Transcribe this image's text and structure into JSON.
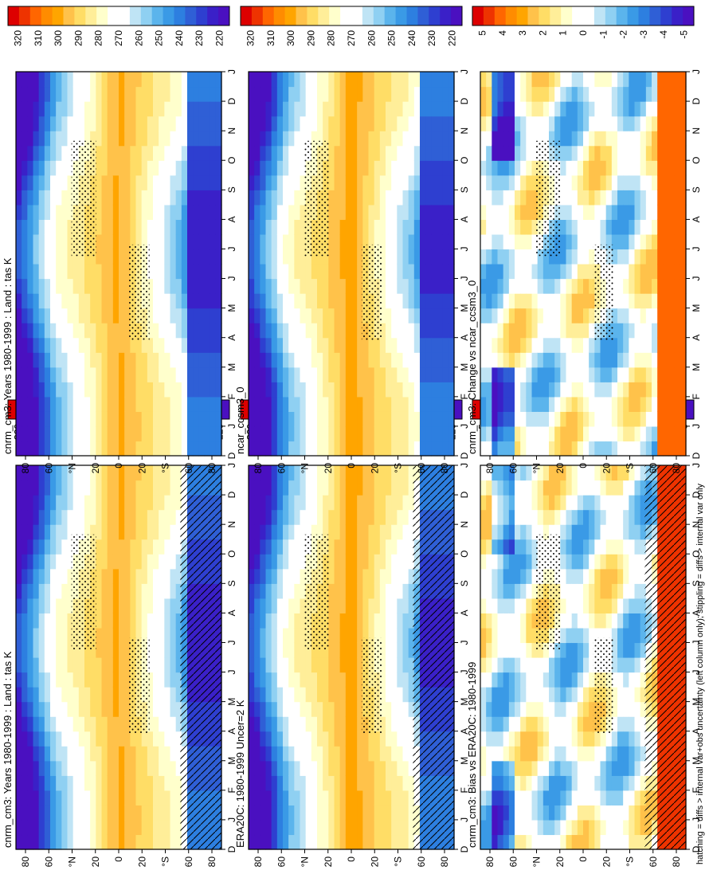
{
  "figure": {
    "footnote": "hatching = diffs > internal var+obs uncertainty (left column only); stippling = diffs > internal var only"
  },
  "chart_data": [
    {
      "id": "left-top",
      "type": "heatmap",
      "title": "cnrm_cm3: Years 1980-1999 : Land : tas K",
      "x": "month",
      "y": "latitude",
      "xticks": [
        "D",
        "J",
        "F",
        "M",
        "A",
        "M",
        "J",
        "J",
        "A",
        "S",
        "O",
        "N",
        "D",
        "J"
      ],
      "yticks": [
        "80",
        "60",
        "°N",
        "20",
        "0",
        "20",
        "°S",
        "60",
        "80"
      ],
      "ylim": [
        -90,
        90
      ],
      "colorbar": {
        "labels": [
          "320",
          "310",
          "300",
          "290",
          "280",
          "270",
          "260",
          "250",
          "240",
          "230",
          "220"
        ],
        "colors": [
          "#dd0000",
          "#ee3300",
          "#ff6600",
          "#ff8c00",
          "#ffa500",
          "#ffc24a",
          "#ffdd66",
          "#ffee99",
          "#ffffcc",
          "#ffffff",
          "#ffffff",
          "#bfe4f5",
          "#8fd0f2",
          "#5bb4ec",
          "#3a9ae6",
          "#2d7fe0",
          "#2f5fd6",
          "#2e3fd0",
          "#3a20c8",
          "#4a10c0"
        ]
      },
      "stippling": true,
      "hatching": true
    },
    {
      "id": "left-middle",
      "type": "heatmap",
      "title": "ERA20C: 1980-1999 Uncer=2 K",
      "x": "month",
      "y": "latitude",
      "xticks": [
        "D",
        "J",
        "F",
        "M",
        "A",
        "M",
        "J",
        "J",
        "A",
        "S",
        "O",
        "N",
        "D",
        "J"
      ],
      "yticks": [
        "80",
        "60",
        "°N",
        "20",
        "0",
        "20",
        "°S",
        "60",
        "80"
      ],
      "ylim": [
        -90,
        90
      ],
      "colorbar": {
        "labels": [
          "320",
          "310",
          "300",
          "290",
          "280",
          "270",
          "260",
          "250",
          "240",
          "230",
          "220"
        ]
      },
      "stippling": true,
      "hatching": true
    },
    {
      "id": "left-bottom",
      "type": "heatmap",
      "title": "cnrm_cm3: Bias vs ERA20C: 1980-1999",
      "x": "month",
      "y": "latitude",
      "xticks": [
        "D",
        "J",
        "F",
        "M",
        "A",
        "M",
        "J",
        "J",
        "A",
        "S",
        "O",
        "N",
        "D",
        "J"
      ],
      "yticks": [
        "80",
        "60",
        "°N",
        "20",
        "0",
        "20",
        "°S",
        "60",
        "80"
      ],
      "ylim": [
        -90,
        90
      ],
      "colorbar": {
        "labels": [
          "5",
          "4",
          "3",
          "2",
          "1",
          "0",
          "-1",
          "-2",
          "-3",
          "-4",
          "-5"
        ],
        "colors": [
          "#dd0000",
          "#ee3300",
          "#ff6600",
          "#ff8c00",
          "#ffa500",
          "#ffc24a",
          "#ffdd66",
          "#ffee99",
          "#ffffcc",
          "#ffffff",
          "#ffffff",
          "#bfe4f5",
          "#8fd0f2",
          "#5bb4ec",
          "#3a9ae6",
          "#2d7fe0",
          "#2f5fd6",
          "#2e3fd0",
          "#3a20c8",
          "#4a10c0"
        ]
      },
      "stippling": true,
      "hatching": true
    },
    {
      "id": "right-top",
      "type": "heatmap",
      "title": "cnrm_cm3: Years 1980-1999 : Land : tas K",
      "x": "month",
      "y": "latitude",
      "xticks": [
        "D",
        "J",
        "F",
        "M",
        "A",
        "M",
        "J",
        "J",
        "A",
        "S",
        "O",
        "N",
        "D",
        "J"
      ],
      "yticks": [
        "80",
        "60",
        "°N",
        "20",
        "0",
        "20",
        "°S",
        "60",
        "80"
      ],
      "ylim": [
        -90,
        90
      ],
      "colorbar": {
        "labels": [
          "320",
          "310",
          "300",
          "290",
          "280",
          "270",
          "260",
          "250",
          "240",
          "230",
          "220"
        ]
      },
      "stippling": true,
      "hatching": false
    },
    {
      "id": "right-middle",
      "type": "heatmap",
      "title": "ncar_ccsm3_0",
      "x": "month",
      "y": "latitude",
      "xticks": [
        "D",
        "J",
        "F",
        "M",
        "A",
        "M",
        "J",
        "J",
        "A",
        "S",
        "O",
        "N",
        "D",
        "J"
      ],
      "yticks": [
        "80",
        "60",
        "°N",
        "20",
        "0",
        "20",
        "°S",
        "60",
        "80"
      ],
      "ylim": [
        -90,
        90
      ],
      "colorbar": {
        "labels": [
          "320",
          "310",
          "300",
          "290",
          "280",
          "270",
          "260",
          "250",
          "240",
          "230",
          "220"
        ]
      },
      "stippling": true,
      "hatching": false
    },
    {
      "id": "right-bottom",
      "type": "heatmap",
      "title": "cnrm_cm3: Change vs ncar_ccsm3_0",
      "x": "month",
      "y": "latitude",
      "xticks": [
        "D",
        "J",
        "F",
        "M",
        "A",
        "M",
        "J",
        "J",
        "A",
        "S",
        "O",
        "N",
        "D",
        "J"
      ],
      "yticks": [
        "80",
        "60",
        "°N",
        "20",
        "0",
        "20",
        "°S",
        "60",
        "80"
      ],
      "ylim": [
        -90,
        90
      ],
      "colorbar": {
        "labels": [
          "5",
          "4",
          "3",
          "2",
          "1",
          "0",
          "-1",
          "-2",
          "-3",
          "-4",
          "-5"
        ]
      },
      "stippling": true,
      "hatching": false
    }
  ]
}
